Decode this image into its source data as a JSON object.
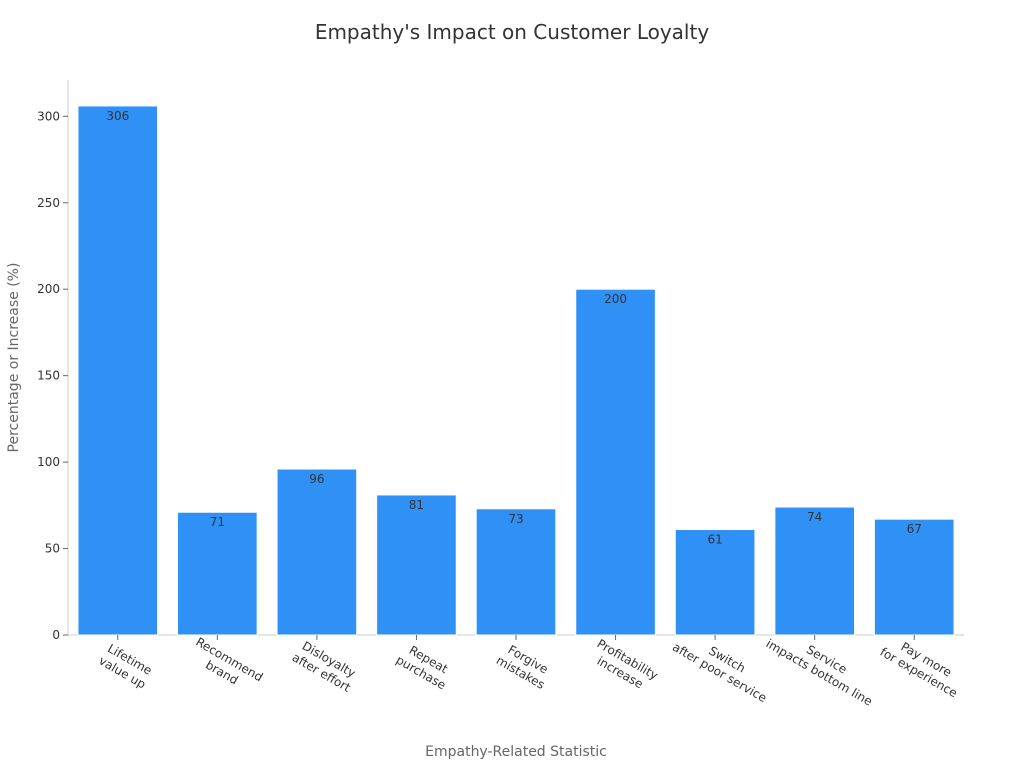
{
  "chart_data": {
    "type": "bar",
    "title": "Empathy's Impact on Customer Loyalty",
    "xlabel": "Empathy-Related Statistic",
    "ylabel": "Percentage or Increase (%)",
    "ylim": [
      0,
      321
    ],
    "yticks": [
      0,
      50,
      100,
      150,
      200,
      250,
      300
    ],
    "grid": false,
    "bar_color": "#2F91F5",
    "categories": [
      [
        "Lifetime",
        "value up"
      ],
      [
        "Recommend",
        "brand"
      ],
      [
        "Disloyalty",
        "after effort"
      ],
      [
        "Repeat",
        "purchase"
      ],
      [
        "Forgive",
        "mistakes"
      ],
      [
        "Profitability",
        "increase"
      ],
      [
        "Switch",
        "after poor service"
      ],
      [
        "Service",
        "impacts bottom line"
      ],
      [
        "Pay more",
        "for experience"
      ]
    ],
    "values": [
      306,
      71,
      96,
      81,
      73,
      200,
      61,
      74,
      67
    ]
  }
}
